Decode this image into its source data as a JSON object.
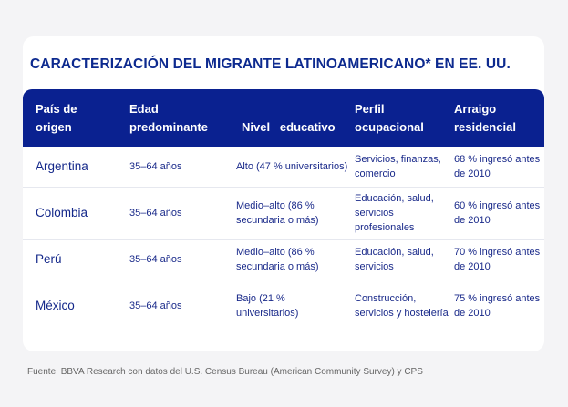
{
  "title": "CARACTERIZACIÓN DEL MIGRANTE LATINOAMERICANO* EN EE. UU.",
  "headers": [
    "País de origen",
    "Edad predominante",
    "Nivel   educativo",
    "Perfil ocupacional",
    "Arraigo residencial"
  ],
  "rows": [
    {
      "pais": "Argentina",
      "edad": "35–64 años",
      "nivel": "Alto (47 % universitarios)",
      "perfil": "Servicios, finanzas, comercio",
      "arraigo": "68 % ingresó antes de 2010"
    },
    {
      "pais": "Colombia",
      "edad": "35–64 años",
      "nivel": "Medio–alto (86 % secundaria o más)",
      "perfil": "Educación, salud, servicios profesionales",
      "arraigo": "60 % ingresó antes de 2010"
    },
    {
      "pais": "Perú",
      "edad": "35–64 años",
      "nivel": "Medio–alto (86 % secundaria o más)",
      "perfil": "Educación, salud, servicios",
      "arraigo": "70 % ingresó antes de 2010"
    },
    {
      "pais": "México",
      "edad": "35–64 años",
      "nivel": "Bajo (21 % universitarios)",
      "perfil": "Construcción, servicios y hostelería",
      "arraigo": "75 % ingresó antes de 2010"
    }
  ],
  "footer": "Fuente: BBVA Research con datos del U.S. Census Bureau (American Community Survey) y CPS"
}
